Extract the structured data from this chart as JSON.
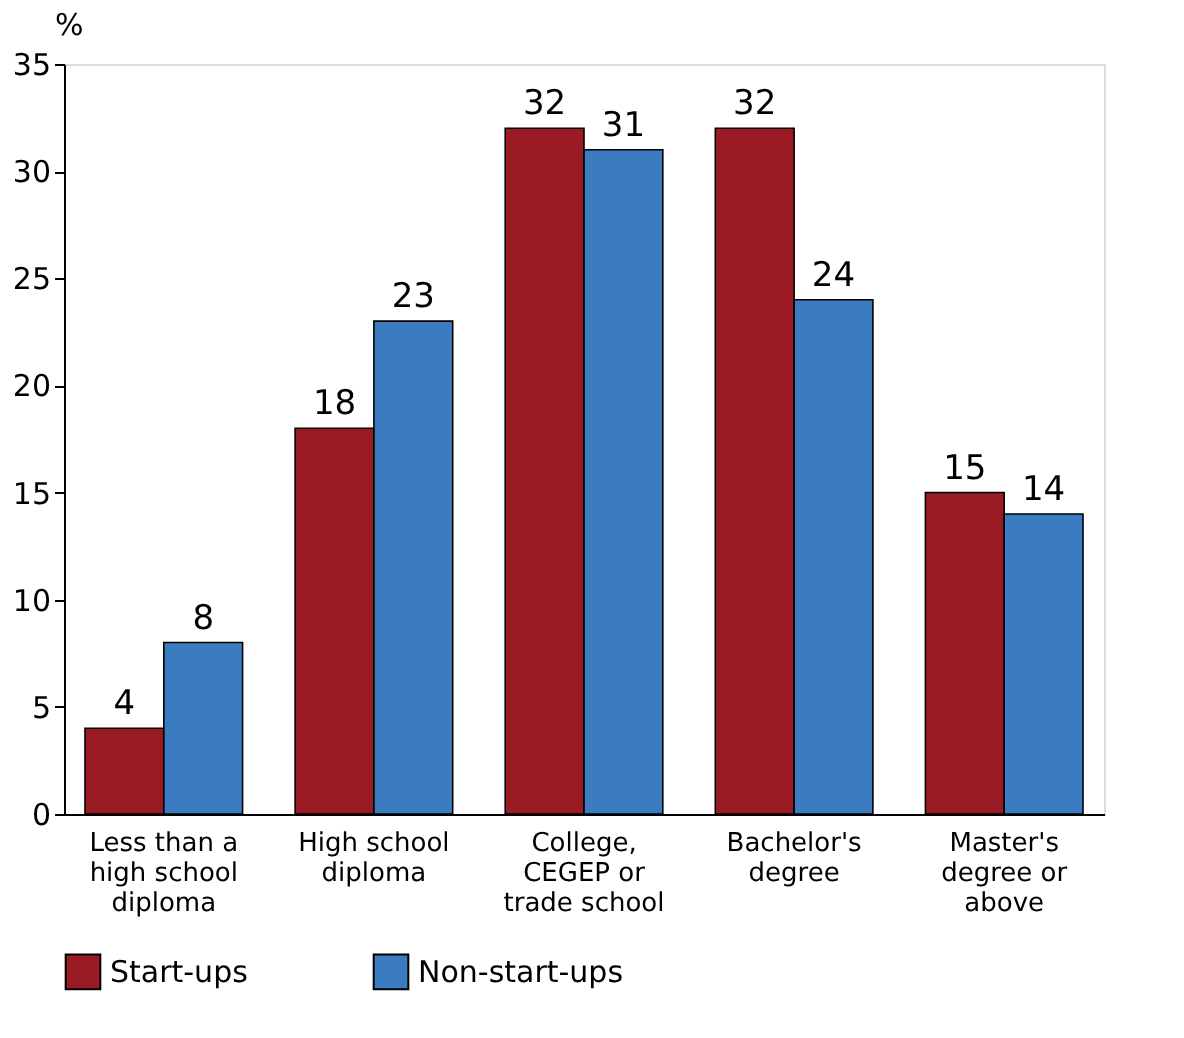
{
  "chart_data": {
    "type": "bar",
    "ylabel": "%",
    "categories": [
      "Less than a high school diploma",
      "High school diploma",
      "College, CEGEP or trade school",
      "Bachelor's degree",
      "Master's degree or above"
    ],
    "series": [
      {
        "name": "Start-ups",
        "color": "#9b1b25",
        "values": [
          4,
          18,
          32,
          32,
          15
        ]
      },
      {
        "name": "Non-start-ups",
        "color": "#3b7cc0",
        "values": [
          8,
          23,
          31,
          24,
          14
        ]
      }
    ],
    "ylim": [
      0,
      35
    ],
    "yticks": [
      0,
      5,
      10,
      15,
      20,
      25,
      30,
      35
    ],
    "grid": false,
    "legend": "bottom",
    "data_labels": true
  }
}
